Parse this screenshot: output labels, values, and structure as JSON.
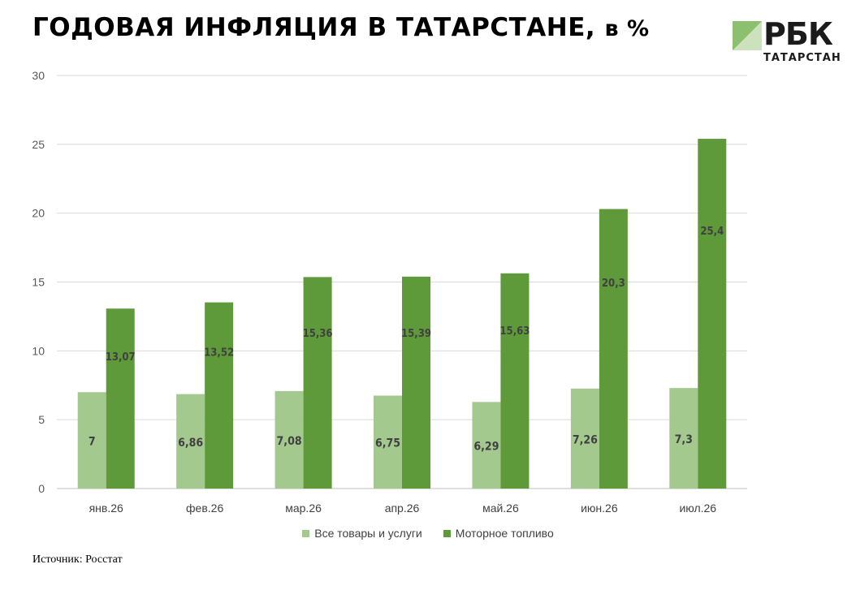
{
  "header": {
    "title": "ГОДОВАЯ ИНФЛЯЦИЯ В ТАТАРСТАНЕ,",
    "title_unit": "в %"
  },
  "logo": {
    "name": "РБК",
    "region": "ТАТАРСТАН"
  },
  "source": "Источник: Росстат",
  "colors": {
    "series_1": "#a4c98e",
    "series_2": "#5e9a3a",
    "grid": "#d9d9d9",
    "logo_mark": "#8cbf6e"
  },
  "chart_data": {
    "type": "bar",
    "title": "ГОДОВАЯ ИНФЛЯЦИЯ В ТАТАРСТАНЕ, в %",
    "categories": [
      "янв.26",
      "фев.26",
      "мар.26",
      "апр.26",
      "май.26",
      "июн.26",
      "июл.26"
    ],
    "series": [
      {
        "name": "Все товары и услуги",
        "values": [
          7,
          6.86,
          7.08,
          6.75,
          6.29,
          7.26,
          7.3
        ],
        "labels": [
          "7",
          "6,86",
          "7,08",
          "6,75",
          "6,29",
          "7,26",
          "7,3"
        ]
      },
      {
        "name": "Моторное топливо",
        "values": [
          13.07,
          13.52,
          15.36,
          15.39,
          15.63,
          20.3,
          25.4
        ],
        "labels": [
          "13,07",
          "13,52",
          "15,36",
          "15,39",
          "15,63",
          "20,3",
          "25,4"
        ]
      }
    ],
    "ylim": [
      0,
      30
    ],
    "yticks": [
      0,
      5,
      10,
      15,
      20,
      25,
      30
    ],
    "grid": true,
    "legend": "bottom-center",
    "xlabel": "",
    "ylabel": ""
  }
}
